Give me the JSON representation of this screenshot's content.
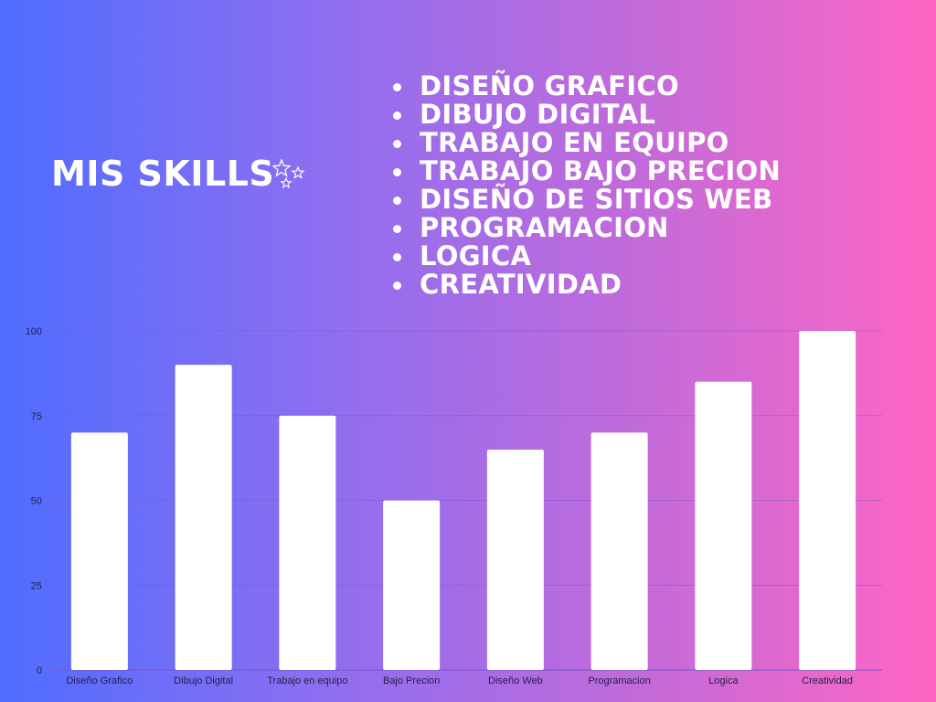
{
  "header": {
    "title": "MIS SKILLS",
    "stars_icon": "sparkle-stars-icon"
  },
  "skills": [
    "DISEÑO GRAFICO",
    "DIBUJO DIGITAL",
    "TRABAJO EN EQUIPO",
    "TRABAJO BAJO PRECION",
    "DISEÑO DE SITIOS WEB",
    "PROGRAMACION",
    "LOGICA",
    "CREATIVIDAD"
  ],
  "colors": {
    "gradient_start": "#4f6dff",
    "gradient_end": "#ff66c4",
    "bar": "#ffffff",
    "gridline": "#7a5ad0",
    "tick_text": "#222244"
  },
  "chart_data": {
    "type": "bar",
    "categories": [
      "Diseño Grafico",
      "Dibujo Digital",
      "Trabajo en equipo",
      "Bajo Precion",
      "Diseño Web",
      "Programacion",
      "Logica",
      "Creatividad"
    ],
    "values": [
      70,
      90,
      75,
      50,
      65,
      70,
      85,
      100
    ],
    "yticks": [
      0,
      25,
      50,
      75,
      100
    ],
    "ylim": [
      0,
      100
    ],
    "grid": true,
    "title": "",
    "xlabel": "",
    "ylabel": ""
  }
}
